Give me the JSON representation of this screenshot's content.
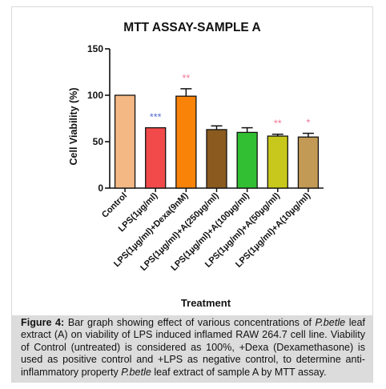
{
  "chart_data": {
    "type": "bar",
    "title": "MTT ASSAY-SAMPLE A",
    "xlabel": "Treatment",
    "ylabel": "Cell Viability (%)",
    "ylim": [
      0,
      150
    ],
    "yticks": [
      "0",
      "50",
      "100",
      "150"
    ],
    "grid": false,
    "legend": "none",
    "categories": [
      "Control",
      "LPS(1µg/ml)",
      "LPS(1µg/ml)+Dexa(9nM)",
      "LPS(1µg/ml)+A(250µg/ml)",
      "LPS(1µg/ml)+A(100µg/ml)",
      "LPS(1µg/ml)+A(50µg/ml)",
      "LPS(1µg/ml)+A(10µg/ml)"
    ],
    "values": [
      100,
      65,
      99,
      63,
      60,
      56,
      55
    ],
    "error": [
      0,
      0,
      8,
      4,
      5,
      2,
      4
    ],
    "colors": [
      "#f4b885",
      "#f24a4a",
      "#f98208",
      "#8a5a1e",
      "#33bf33",
      "#c8c81c",
      "#c29a55"
    ],
    "significance": [
      "",
      "***",
      "**",
      "",
      "",
      "**",
      "*"
    ],
    "significance_colors": [
      "",
      "#5b6fd6",
      "#f07a9a",
      "",
      "",
      "#f07a9a",
      "#f07a9a"
    ]
  },
  "caption": {
    "label": "Figure 4:",
    "part1": " Bar graph showing effect of various concentrations of ",
    "species1": "P.betle",
    "part2": " leaf extract (A) on viability of LPS induced inflamed RAW 264.7 cell line. Viability of Control (untreated) is considered as 100%, +Dexa (Dexamethasone) is used as positive control and +LPS as negative control, to determine anti-inflammatory property ",
    "species2": "P.betle",
    "part3": " leaf extract of sample A by MTT assay."
  }
}
